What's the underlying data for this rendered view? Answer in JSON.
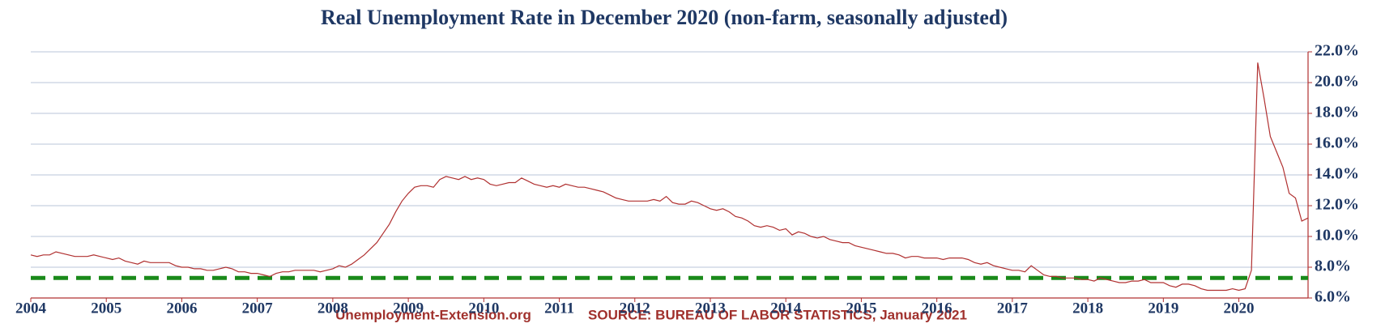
{
  "chart_data": {
    "type": "line",
    "title": "Real Unemployment Rate in December 2020 (non-farm, seasonally adjusted)",
    "footer_left": "Unemployment-Extension.org",
    "footer_right": "SOURCE: BUREAU OF LABOR STATISTICS, January 2021",
    "categories": [
      "2004",
      null,
      null,
      null,
      null,
      null,
      null,
      null,
      null,
      null,
      null,
      null,
      "2005",
      null,
      null,
      null,
      null,
      null,
      null,
      null,
      null,
      null,
      null,
      null,
      "2006",
      null,
      null,
      null,
      null,
      null,
      null,
      null,
      null,
      null,
      null,
      null,
      "2007",
      null,
      null,
      null,
      null,
      null,
      null,
      null,
      null,
      null,
      null,
      null,
      "2008",
      null,
      null,
      null,
      null,
      null,
      null,
      null,
      null,
      null,
      null,
      null,
      "2009",
      null,
      null,
      null,
      null,
      null,
      null,
      null,
      null,
      null,
      null,
      null,
      "2010",
      null,
      null,
      null,
      null,
      null,
      null,
      null,
      null,
      null,
      null,
      null,
      "2011",
      null,
      null,
      null,
      null,
      null,
      null,
      null,
      null,
      null,
      null,
      null,
      "2012",
      null,
      null,
      null,
      null,
      null,
      null,
      null,
      null,
      null,
      null,
      null,
      "2013",
      null,
      null,
      null,
      null,
      null,
      null,
      null,
      null,
      null,
      null,
      null,
      "2014",
      null,
      null,
      null,
      null,
      null,
      null,
      null,
      null,
      null,
      null,
      null,
      "2015",
      null,
      null,
      null,
      null,
      null,
      null,
      null,
      null,
      null,
      null,
      null,
      "2016",
      null,
      null,
      null,
      null,
      null,
      null,
      null,
      null,
      null,
      null,
      null,
      "2017",
      null,
      null,
      null,
      null,
      null,
      null,
      null,
      null,
      null,
      null,
      null,
      "2018",
      null,
      null,
      null,
      null,
      null,
      null,
      null,
      null,
      null,
      null,
      null,
      "2019",
      null,
      null,
      null,
      null,
      null,
      null,
      null,
      null,
      null,
      null,
      null,
      "2020",
      null,
      null,
      null,
      null,
      null,
      null,
      null,
      null,
      null,
      null,
      null
    ],
    "series": [
      {
        "color": "#b03030",
        "values": [
          8.8,
          8.7,
          8.8,
          8.8,
          9.0,
          8.9,
          8.8,
          8.7,
          8.7,
          8.7,
          8.8,
          8.7,
          8.6,
          8.5,
          8.6,
          8.4,
          8.3,
          8.2,
          8.4,
          8.3,
          8.3,
          8.3,
          8.3,
          8.1,
          8.0,
          8.0,
          7.9,
          7.9,
          7.8,
          7.8,
          7.9,
          8.0,
          7.9,
          7.7,
          7.7,
          7.6,
          7.6,
          7.5,
          7.4,
          7.6,
          7.7,
          7.7,
          7.8,
          7.8,
          7.8,
          7.8,
          7.7,
          7.8,
          7.9,
          8.1,
          8.0,
          8.2,
          8.5,
          8.8,
          9.2,
          9.6,
          10.2,
          10.8,
          11.6,
          12.3,
          12.8,
          13.2,
          13.3,
          13.3,
          13.2,
          13.7,
          13.9,
          13.8,
          13.7,
          13.9,
          13.7,
          13.8,
          13.7,
          13.4,
          13.3,
          13.4,
          13.5,
          13.5,
          13.8,
          13.6,
          13.4,
          13.3,
          13.2,
          13.3,
          13.2,
          13.4,
          13.3,
          13.2,
          13.2,
          13.1,
          13.0,
          12.9,
          12.7,
          12.5,
          12.4,
          12.3,
          12.3,
          12.3,
          12.3,
          12.4,
          12.3,
          12.6,
          12.2,
          12.1,
          12.1,
          12.3,
          12.2,
          12.0,
          11.8,
          11.7,
          11.8,
          11.6,
          11.3,
          11.2,
          11.0,
          10.7,
          10.6,
          10.7,
          10.6,
          10.4,
          10.5,
          10.1,
          10.3,
          10.2,
          10.0,
          9.9,
          10.0,
          9.8,
          9.7,
          9.6,
          9.6,
          9.4,
          9.3,
          9.2,
          9.1,
          9.0,
          8.9,
          8.9,
          8.8,
          8.6,
          8.7,
          8.7,
          8.6,
          8.6,
          8.6,
          8.5,
          8.6,
          8.6,
          8.6,
          8.5,
          8.3,
          8.2,
          8.3,
          8.1,
          8.0,
          7.9,
          7.8,
          7.8,
          7.7,
          8.1,
          7.8,
          7.5,
          7.4,
          7.4,
          7.3,
          7.3,
          7.3,
          7.2,
          7.2,
          7.1,
          7.3,
          7.2,
          7.1,
          7.0,
          7.0,
          7.1,
          7.1,
          7.2,
          7.0,
          7.0,
          7.0,
          6.8,
          6.7,
          6.9,
          6.9,
          6.8,
          6.6,
          6.5,
          6.5,
          6.5,
          6.5,
          6.6,
          6.5,
          6.6,
          7.8,
          21.3,
          19.0,
          16.5,
          15.5,
          14.5,
          12.8,
          12.5,
          11.0,
          11.2
        ]
      }
    ],
    "reference_line": {
      "value": 7.3,
      "color": "#1a8a1a"
    },
    "ylim": [
      6,
      22
    ],
    "yticks": [
      {
        "value": 6,
        "label": "6.0%"
      },
      {
        "value": 8,
        "label": "8.0%"
      },
      {
        "value": 10,
        "label": "10.0%"
      },
      {
        "value": 12,
        "label": "12.0%"
      },
      {
        "value": 14,
        "label": "14.0%"
      },
      {
        "value": 16,
        "label": "16.0%"
      },
      {
        "value": 18,
        "label": "18.0%"
      },
      {
        "value": 20,
        "label": "20.0%"
      },
      {
        "value": 22,
        "label": "22.0%"
      }
    ],
    "grid": true
  }
}
